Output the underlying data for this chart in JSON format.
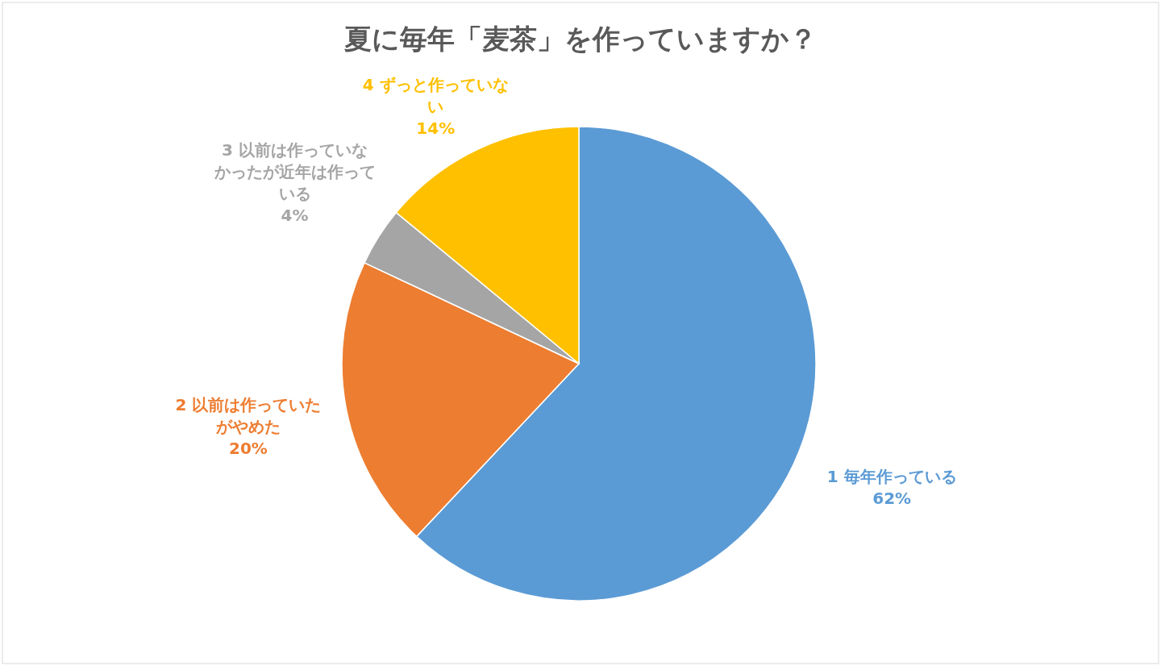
{
  "chart_data": {
    "type": "pie",
    "title": "夏に毎年「麦茶」を作っていますか？",
    "categories": [
      "1 毎年作っている",
      "2 以前は作っていたがやめた",
      "3 以前は作っていなかったが近年は作っている",
      "4 ずっと作っていない"
    ],
    "values": [
      62,
      20,
      4,
      14
    ],
    "colors": [
      "#5b9bd5",
      "#ed7d31",
      "#a5a5a5",
      "#ffc000"
    ],
    "value_labels": [
      "62%",
      "20%",
      "4%",
      "14%"
    ]
  }
}
